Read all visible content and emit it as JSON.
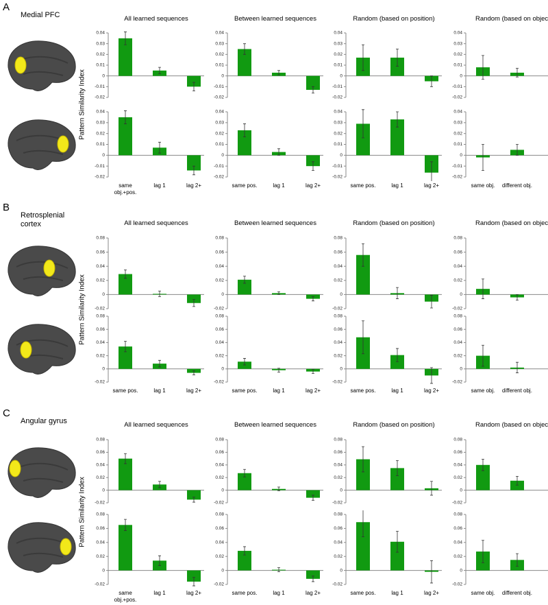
{
  "panels": [
    {
      "letter": "A",
      "region": "Medial PFC",
      "ylabel": "Pattern Similarity Index",
      "column_titles": [
        "All learned sequences",
        "Between learned sequences",
        "Random (based on position)",
        "Random (based on object)"
      ]
    },
    {
      "letter": "B",
      "region": "Retrosplenial cortex",
      "ylabel": "Pattern Similarity Index",
      "column_titles": [
        "All learned sequences",
        "Between learned sequences",
        "Random (based on position)",
        "Random (based on object)"
      ]
    },
    {
      "letter": "C",
      "region": "Angular gyrus",
      "ylabel": "Pattern Similarity Index",
      "column_titles": [
        "All learned sequences",
        "Between learned sequences",
        "Random (based on position)",
        "Random (based on object)"
      ]
    }
  ],
  "chart_data": [
    {
      "type": "bar",
      "categories": [
        null,
        null,
        null
      ],
      "values": [
        0.035,
        0.005,
        -0.01
      ],
      "errors": [
        0.006,
        0.003,
        0.004
      ],
      "color": "#119a11",
      "ylim": [
        -0.02,
        0.04
      ],
      "yticks": [
        -0.02,
        -0.01,
        0,
        0.01,
        0.02,
        0.03,
        0.04
      ]
    },
    {
      "type": "bar",
      "categories": [
        null,
        null,
        null
      ],
      "values": [
        0.025,
        0.003,
        -0.013
      ],
      "errors": [
        0.005,
        0.002,
        0.003
      ],
      "color": "#119a11",
      "ylim": [
        -0.02,
        0.04
      ],
      "yticks": [
        -0.02,
        -0.01,
        0,
        0.01,
        0.02,
        0.03,
        0.04
      ]
    },
    {
      "type": "bar",
      "categories": [
        null,
        null,
        null
      ],
      "values": [
        0.017,
        0.017,
        -0.005
      ],
      "errors": [
        0.012,
        0.008,
        0.005
      ],
      "color": "#119a11",
      "ylim": [
        -0.02,
        0.04
      ],
      "yticks": [
        -0.02,
        -0.01,
        0,
        0.01,
        0.02,
        0.03,
        0.04
      ]
    },
    {
      "type": "bar",
      "categories": [
        null,
        null
      ],
      "values": [
        0.008,
        0.003
      ],
      "errors": [
        0.011,
        0.004
      ],
      "color": "#119a11",
      "ylim": [
        -0.02,
        0.04
      ],
      "yticks": [
        -0.02,
        -0.01,
        0,
        0.01,
        0.02,
        0.03,
        0.04
      ]
    },
    {
      "type": "bar",
      "categories": [
        "same obj.+pos.",
        "lag 1",
        "lag 2+"
      ],
      "values": [
        0.035,
        0.007,
        -0.014
      ],
      "errors": [
        0.006,
        0.005,
        0.004
      ],
      "color": "#119a11",
      "ylim": [
        -0.02,
        0.04
      ],
      "yticks": [
        -0.02,
        -0.01,
        0,
        0.01,
        0.02,
        0.03,
        0.04
      ]
    },
    {
      "type": "bar",
      "categories": [
        "same pos.",
        "lag 1",
        "lag 2+"
      ],
      "values": [
        0.023,
        0.003,
        -0.01
      ],
      "errors": [
        0.006,
        0.003,
        0.004
      ],
      "color": "#119a11",
      "ylim": [
        -0.02,
        0.04
      ],
      "yticks": [
        -0.02,
        -0.01,
        0,
        0.01,
        0.02,
        0.03,
        0.04
      ]
    },
    {
      "type": "bar",
      "categories": [
        "same pos.",
        "lag 1",
        "lag 2+"
      ],
      "values": [
        0.029,
        0.033,
        -0.016
      ],
      "errors": [
        0.013,
        0.007,
        0.01
      ],
      "color": "#119a11",
      "ylim": [
        -0.02,
        0.04
      ],
      "yticks": [
        -0.02,
        -0.01,
        0,
        0.01,
        0.02,
        0.03,
        0.04
      ]
    },
    {
      "type": "bar",
      "categories": [
        "same obj.",
        "different obj."
      ],
      "values": [
        -0.002,
        0.005
      ],
      "errors": [
        0.012,
        0.005
      ],
      "color": "#119a11",
      "ylim": [
        -0.02,
        0.04
      ],
      "yticks": [
        -0.02,
        -0.01,
        0,
        0.01,
        0.02,
        0.03,
        0.04
      ]
    },
    {
      "type": "bar",
      "categories": [
        null,
        null,
        null
      ],
      "values": [
        0.029,
        0.001,
        -0.012
      ],
      "errors": [
        0.006,
        0.004,
        0.005
      ],
      "color": "#119a11",
      "ylim": [
        -0.02,
        0.08
      ],
      "yticks": [
        -0.02,
        0,
        0.02,
        0.04,
        0.06,
        0.08
      ]
    },
    {
      "type": "bar",
      "categories": [
        null,
        null,
        null
      ],
      "values": [
        0.021,
        0.002,
        -0.006
      ],
      "errors": [
        0.005,
        0.002,
        0.003
      ],
      "color": "#119a11",
      "ylim": [
        -0.02,
        0.08
      ],
      "yticks": [
        -0.02,
        0,
        0.02,
        0.04,
        0.06,
        0.08
      ]
    },
    {
      "type": "bar",
      "categories": [
        null,
        null,
        null
      ],
      "values": [
        0.056,
        0.002,
        -0.01
      ],
      "errors": [
        0.016,
        0.008,
        0.009
      ],
      "color": "#119a11",
      "ylim": [
        -0.02,
        0.08
      ],
      "yticks": [
        -0.02,
        0,
        0.02,
        0.04,
        0.06,
        0.08
      ]
    },
    {
      "type": "bar",
      "categories": [
        null,
        null
      ],
      "values": [
        0.008,
        -0.004
      ],
      "errors": [
        0.014,
        0.004
      ],
      "color": "#119a11",
      "ylim": [
        -0.02,
        0.08
      ],
      "yticks": [
        -0.02,
        0,
        0.02,
        0.04,
        0.06,
        0.08
      ]
    },
    {
      "type": "bar",
      "categories": [
        "same pos.",
        "lag 1",
        "lag 2+"
      ],
      "values": [
        0.034,
        0.008,
        -0.006
      ],
      "errors": [
        0.008,
        0.005,
        0.003
      ],
      "color": "#119a11",
      "ylim": [
        -0.02,
        0.08
      ],
      "yticks": [
        -0.02,
        0,
        0.02,
        0.04,
        0.06,
        0.08
      ]
    },
    {
      "type": "bar",
      "categories": [
        "same pos.",
        "lag 1",
        "lag 2+"
      ],
      "values": [
        0.011,
        -0.002,
        -0.004
      ],
      "errors": [
        0.005,
        0.003,
        0.003
      ],
      "color": "#119a11",
      "ylim": [
        -0.02,
        0.08
      ],
      "yticks": [
        -0.02,
        0,
        0.02,
        0.04,
        0.06,
        0.08
      ]
    },
    {
      "type": "bar",
      "categories": [
        "same pos.",
        "lag 1",
        "lag 2+"
      ],
      "values": [
        0.048,
        0.021,
        -0.01
      ],
      "errors": [
        0.025,
        0.01,
        0.012
      ],
      "color": "#119a11",
      "ylim": [
        -0.02,
        0.08
      ],
      "yticks": [
        -0.02,
        0,
        0.02,
        0.04,
        0.06,
        0.08
      ]
    },
    {
      "type": "bar",
      "categories": [
        "same obj.",
        "different obj."
      ],
      "values": [
        0.02,
        0.002
      ],
      "errors": [
        0.016,
        0.008
      ],
      "color": "#119a11",
      "ylim": [
        -0.02,
        0.08
      ],
      "yticks": [
        -0.02,
        0,
        0.02,
        0.04,
        0.06,
        0.08
      ]
    },
    {
      "type": "bar",
      "categories": [
        null,
        null,
        null
      ],
      "values": [
        0.05,
        0.009,
        -0.015
      ],
      "errors": [
        0.008,
        0.005,
        0.004
      ],
      "color": "#119a11",
      "ylim": [
        -0.02,
        0.08
      ],
      "yticks": [
        -0.02,
        0,
        0.02,
        0.04,
        0.06,
        0.08
      ]
    },
    {
      "type": "bar",
      "categories": [
        null,
        null,
        null
      ],
      "values": [
        0.027,
        0.002,
        -0.012
      ],
      "errors": [
        0.006,
        0.003,
        0.004
      ],
      "color": "#119a11",
      "ylim": [
        -0.02,
        0.08
      ],
      "yticks": [
        -0.02,
        0,
        0.02,
        0.04,
        0.06,
        0.08
      ]
    },
    {
      "type": "bar",
      "categories": [
        null,
        null,
        null
      ],
      "values": [
        0.049,
        0.035,
        0.003
      ],
      "errors": [
        0.02,
        0.012,
        0.011
      ],
      "color": "#119a11",
      "ylim": [
        -0.02,
        0.08
      ],
      "yticks": [
        -0.02,
        0,
        0.02,
        0.04,
        0.06,
        0.08
      ]
    },
    {
      "type": "bar",
      "categories": [
        null,
        null
      ],
      "values": [
        0.04,
        0.015
      ],
      "errors": [
        0.009,
        0.007
      ],
      "color": "#119a11",
      "ylim": [
        -0.02,
        0.08
      ],
      "yticks": [
        -0.02,
        0,
        0.02,
        0.04,
        0.06,
        0.08
      ]
    },
    {
      "type": "bar",
      "categories": [
        "same obj.+pos.",
        "lag 1",
        "lag 2+"
      ],
      "values": [
        0.065,
        0.014,
        -0.016
      ],
      "errors": [
        0.008,
        0.007,
        0.006
      ],
      "color": "#119a11",
      "ylim": [
        -0.02,
        0.08
      ],
      "yticks": [
        -0.02,
        0,
        0.02,
        0.04,
        0.06,
        0.08
      ]
    },
    {
      "type": "bar",
      "categories": [
        "same pos.",
        "lag 1",
        "lag 2+"
      ],
      "values": [
        0.028,
        0.001,
        -0.012
      ],
      "errors": [
        0.006,
        0.003,
        0.004
      ],
      "color": "#119a11",
      "ylim": [
        -0.02,
        0.08
      ],
      "yticks": [
        -0.02,
        0,
        0.02,
        0.04,
        0.06,
        0.08
      ]
    },
    {
      "type": "bar",
      "categories": [
        "same pos.",
        "lag 1",
        "lag 2+"
      ],
      "values": [
        0.069,
        0.041,
        -0.002
      ],
      "errors": [
        0.021,
        0.015,
        0.016
      ],
      "color": "#119a11",
      "ylim": [
        -0.02,
        0.08
      ],
      "yticks": [
        -0.02,
        0,
        0.02,
        0.04,
        0.06,
        0.08
      ]
    },
    {
      "type": "bar",
      "categories": [
        "same obj.",
        "different obj."
      ],
      "values": [
        0.027,
        0.015
      ],
      "errors": [
        0.016,
        0.009
      ],
      "color": "#119a11",
      "ylim": [
        -0.02,
        0.08
      ],
      "yticks": [
        -0.02,
        0,
        0.02,
        0.04,
        0.06,
        0.08
      ]
    }
  ]
}
